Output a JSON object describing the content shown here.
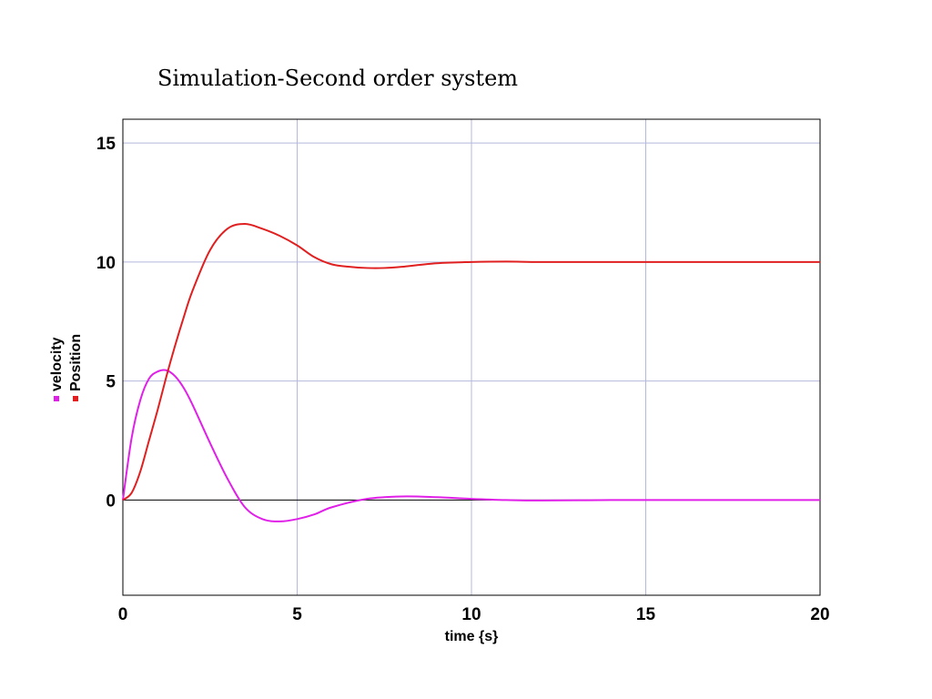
{
  "title": "Simulation-Second order system",
  "chart_data": {
    "type": "line",
    "xlabel": "time {s}",
    "xlim": [
      0,
      20
    ],
    "ylim": [
      -4,
      16
    ],
    "x_ticks": [
      0,
      5,
      10,
      15,
      20
    ],
    "y_ticks": [
      0,
      5,
      10,
      15
    ],
    "grid": true,
    "legend_placement": "left",
    "series": [
      {
        "name": "velocity",
        "color": "#e020e8",
        "x": [
          0,
          0.25,
          0.5,
          0.75,
          1.0,
          1.25,
          1.5,
          1.75,
          2.0,
          2.5,
          3.0,
          3.5,
          4.0,
          4.5,
          5.0,
          5.5,
          6.0,
          7.0,
          8.0,
          9.0,
          10.0,
          11.0,
          12.0,
          14.0,
          16.0,
          18.0,
          20.0
        ],
        "values": [
          0,
          2.6,
          4.2,
          5.1,
          5.4,
          5.45,
          5.2,
          4.7,
          4.0,
          2.4,
          0.9,
          -0.3,
          -0.8,
          -0.9,
          -0.8,
          -0.6,
          -0.3,
          0.05,
          0.15,
          0.12,
          0.05,
          0.0,
          -0.02,
          0.0,
          0.0,
          0.0,
          0.0
        ]
      },
      {
        "name": "Position",
        "color": "#e02020",
        "x": [
          0,
          0.25,
          0.5,
          0.75,
          1.0,
          1.25,
          1.5,
          1.75,
          2.0,
          2.5,
          3.0,
          3.5,
          4.0,
          4.5,
          5.0,
          5.5,
          6.0,
          6.5,
          7.0,
          7.5,
          8.0,
          9.0,
          10.0,
          11.0,
          12.0,
          14.0,
          16.0,
          18.0,
          20.0
        ],
        "values": [
          0,
          0.3,
          1.2,
          2.5,
          3.8,
          5.2,
          6.5,
          7.7,
          8.8,
          10.5,
          11.4,
          11.6,
          11.4,
          11.1,
          10.7,
          10.2,
          9.9,
          9.8,
          9.75,
          9.75,
          9.8,
          9.95,
          10.0,
          10.02,
          10.0,
          10.0,
          10.0,
          10.0,
          10.0
        ]
      }
    ]
  }
}
